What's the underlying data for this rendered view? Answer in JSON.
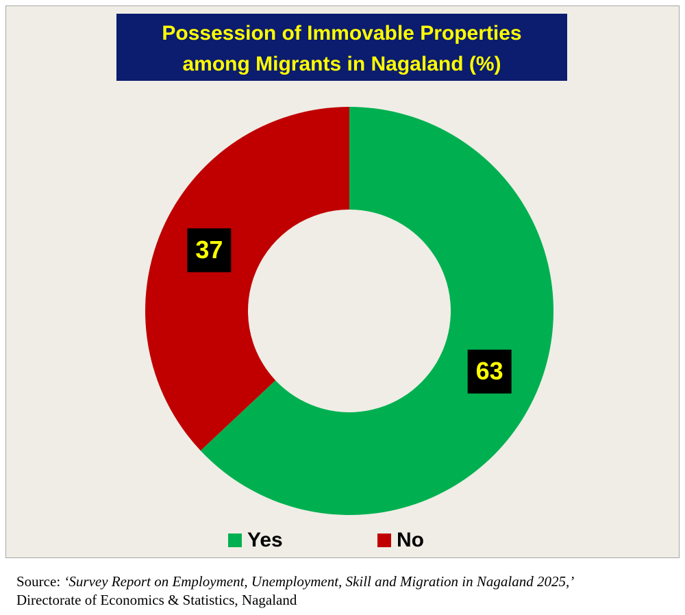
{
  "chart_data": {
    "type": "donut",
    "title": [
      "Possession of Immovable Properties",
      "among Migrants in Nagaland (%)"
    ],
    "categories": [
      "Yes",
      "No"
    ],
    "values": [
      63,
      37
    ],
    "colors": [
      "#00b050",
      "#c00000"
    ],
    "legend": "bottom"
  },
  "source": {
    "prefix": "Source:",
    "report": "‘Survey Report on Employment, Unemployment, Skill and Migration in Nagaland 2025,’",
    "publisher": "Directorate of Economics & Statistics, Nagaland"
  }
}
